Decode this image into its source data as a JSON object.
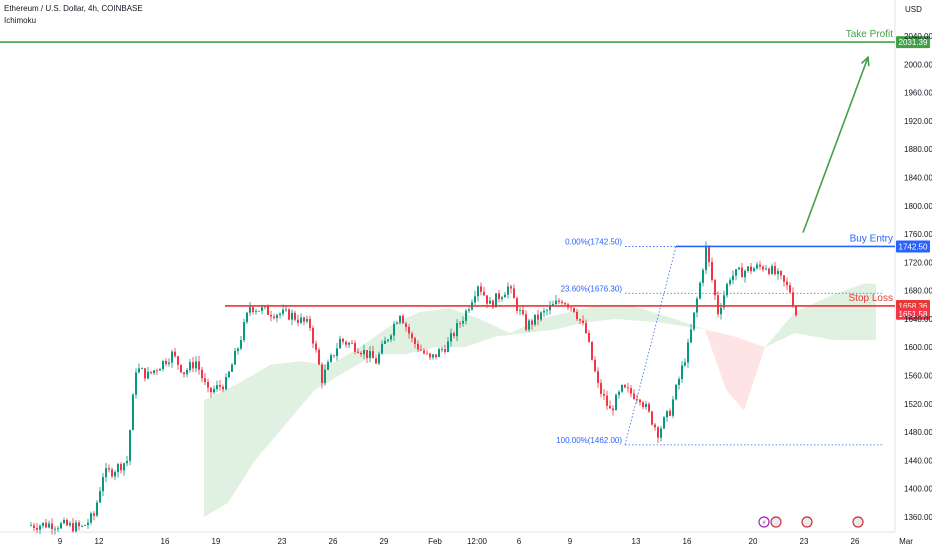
{
  "header": {
    "title": "Ethereum / U.S. Dollar, 4h, COINBASE",
    "indicator": "Ichimoku"
  },
  "colors": {
    "up": "#089981",
    "down": "#f23645",
    "take_profit": "#43a047",
    "buy_entry": "#2962ff",
    "stop_loss": "#e53935",
    "fib": "#2962ff",
    "cloud_green": "#c8e6c9",
    "cloud_red": "#ffcdd2"
  },
  "chart_data": {
    "type": "candlestick",
    "title": "Ethereum / U.S. Dollar, 4h, COINBASE",
    "y_unit": "USD",
    "ylim": [
      1340,
      2080
    ],
    "y_ticks": [
      1360,
      1400,
      1440,
      1480,
      1520,
      1560,
      1600,
      1640,
      1680,
      1720,
      1760,
      1800,
      1840,
      1880,
      1920,
      1960,
      2000,
      2040
    ],
    "y_tick_labels": [
      "1360.00",
      "1400.00",
      "1440.00",
      "1480.00",
      "1520.00",
      "1560.00",
      "1600.00",
      "1640.00",
      "1680.00",
      "1720.00",
      "1760.00",
      "1800.00",
      "1840.00",
      "1880.00",
      "1920.00",
      "1960.00",
      "2000.00",
      "2040.00"
    ],
    "x_range": [
      0,
      302
    ],
    "x_ticks": [
      {
        "label": "9",
        "bar": 10
      },
      {
        "label": "12",
        "bar": 23
      },
      {
        "label": "16",
        "bar": 45
      },
      {
        "label": "19",
        "bar": 62
      },
      {
        "label": "23",
        "bar": 84
      },
      {
        "label": "26",
        "bar": 101
      },
      {
        "label": "29",
        "bar": 118
      },
      {
        "label": "Feb",
        "bar": 135
      },
      {
        "label": "12:00",
        "bar": 149
      },
      {
        "label": "6",
        "bar": 163
      },
      {
        "label": "9",
        "bar": 180
      },
      {
        "label": "13",
        "bar": 202
      },
      {
        "label": "16",
        "bar": 219
      },
      {
        "label": "20",
        "bar": 241
      },
      {
        "label": "23",
        "bar": 258
      },
      {
        "label": "26",
        "bar": 275
      },
      {
        "label": "Mar",
        "bar": 292
      }
    ],
    "anchors": [
      [
        0,
        1348
      ],
      [
        8,
        1350
      ],
      [
        18,
        1345
      ],
      [
        22,
        1362
      ],
      [
        25,
        1420
      ],
      [
        28,
        1425
      ],
      [
        33,
        1440
      ],
      [
        36,
        1570
      ],
      [
        40,
        1560
      ],
      [
        48,
        1590
      ],
      [
        52,
        1565
      ],
      [
        56,
        1580
      ],
      [
        60,
        1535
      ],
      [
        66,
        1550
      ],
      [
        70,
        1600
      ],
      [
        74,
        1658
      ],
      [
        80,
        1650
      ],
      [
        88,
        1645
      ],
      [
        94,
        1630
      ],
      [
        98,
        1555
      ],
      [
        104,
        1610
      ],
      [
        110,
        1600
      ],
      [
        116,
        1580
      ],
      [
        124,
        1650
      ],
      [
        128,
        1610
      ],
      [
        134,
        1582
      ],
      [
        140,
        1605
      ],
      [
        146,
        1650
      ],
      [
        150,
        1690
      ],
      [
        154,
        1660
      ],
      [
        160,
        1685
      ],
      [
        166,
        1630
      ],
      [
        172,
        1648
      ],
      [
        178,
        1668
      ],
      [
        182,
        1655
      ],
      [
        186,
        1620
      ],
      [
        190,
        1545
      ],
      [
        194,
        1510
      ],
      [
        198,
        1540
      ],
      [
        204,
        1530
      ],
      [
        210,
        1480
      ],
      [
        214,
        1510
      ],
      [
        220,
        1600
      ],
      [
        224,
        1690
      ],
      [
        226,
        1740
      ],
      [
        230,
        1650
      ],
      [
        234,
        1700
      ],
      [
        240,
        1710
      ],
      [
        246,
        1715
      ],
      [
        250,
        1700
      ],
      [
        254,
        1680
      ],
      [
        256,
        1648
      ]
    ],
    "cloud": [
      {
        "color": "green",
        "top": [
          [
            58,
            1525
          ],
          [
            70,
            1550
          ],
          [
            80,
            1575
          ],
          [
            90,
            1580
          ],
          [
            100,
            1575
          ],
          [
            110,
            1600
          ],
          [
            120,
            1630
          ],
          [
            130,
            1650
          ],
          [
            140,
            1655
          ],
          [
            150,
            1640
          ],
          [
            160,
            1620
          ],
          [
            170,
            1640
          ],
          [
            180,
            1650
          ],
          [
            190,
            1660
          ],
          [
            200,
            1660
          ],
          [
            215,
            1640
          ],
          [
            225,
            1625
          ]
        ],
        "bottom": [
          [
            58,
            1360
          ],
          [
            66,
            1380
          ],
          [
            75,
            1440
          ],
          [
            85,
            1490
          ],
          [
            95,
            1540
          ],
          [
            105,
            1565
          ],
          [
            115,
            1590
          ],
          [
            125,
            1590
          ],
          [
            135,
            1600
          ],
          [
            145,
            1600
          ],
          [
            155,
            1615
          ],
          [
            165,
            1620
          ],
          [
            175,
            1625
          ],
          [
            185,
            1635
          ],
          [
            195,
            1640
          ],
          [
            210,
            1635
          ],
          [
            225,
            1625
          ]
        ]
      },
      {
        "color": "red",
        "top": [
          [
            225,
            1625
          ],
          [
            235,
            1615
          ],
          [
            245,
            1600
          ]
        ],
        "bottom": [
          [
            225,
            1625
          ],
          [
            232,
            1540
          ],
          [
            238,
            1510
          ],
          [
            245,
            1600
          ]
        ]
      },
      {
        "color": "green",
        "top": [
          [
            245,
            1600
          ],
          [
            255,
            1650
          ],
          [
            268,
            1675
          ],
          [
            278,
            1690
          ],
          [
            282,
            1690
          ]
        ],
        "bottom": [
          [
            245,
            1600
          ],
          [
            255,
            1620
          ],
          [
            268,
            1610
          ],
          [
            282,
            1610
          ]
        ]
      }
    ],
    "levels": [
      {
        "name": "Take Profit",
        "value": 2031.39,
        "value_label": "2031.39",
        "color": "take_profit"
      },
      {
        "name": "Buy Entry",
        "value": 1742.5,
        "value_label": "1742.50",
        "color": "buy_entry"
      },
      {
        "name": "Stop Loss",
        "value": 1658.36,
        "value_label": "1658.36",
        "color": "stop_loss"
      }
    ],
    "current_price": {
      "value": 1651.58,
      "value_label": "1651.58"
    },
    "fibonacci": [
      {
        "label": "0.00%(1742.50)",
        "value": 1742.5
      },
      {
        "label": "23.60%(1676.30)",
        "value": 1676.3
      },
      {
        "label": "100.00%(1462.00)",
        "value": 1462.0
      }
    ],
    "arrow": {
      "from": [
        257,
        1762
      ],
      "to": [
        280,
        2010
      ]
    }
  }
}
